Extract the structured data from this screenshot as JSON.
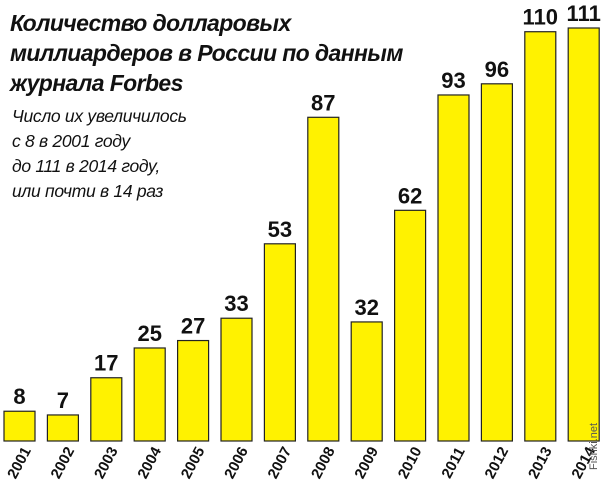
{
  "chart_data": {
    "type": "bar",
    "title": "Количество долларовых миллиардеров в России по данным журнала Forbes",
    "subtitle_lines": [
      "Число их увеличилось",
      "с 8 в 2001 году",
      "до 111 в 2014 году,",
      "или почти в 14 раз"
    ],
    "categories": [
      "2001",
      "2002",
      "2003",
      "2004",
      "2005",
      "2006",
      "2007",
      "2008",
      "2009",
      "2010",
      "2011",
      "2012",
      "2013",
      "2014"
    ],
    "values": [
      8,
      7,
      17,
      25,
      27,
      33,
      53,
      87,
      32,
      62,
      93,
      96,
      110,
      111
    ],
    "xlabel": "",
    "ylabel": "",
    "ylim": [
      0,
      111
    ],
    "grid": false,
    "legend": "none",
    "bar_color": "#FFF200",
    "bar_stroke": "#222222"
  },
  "watermark": "Fishki.net"
}
